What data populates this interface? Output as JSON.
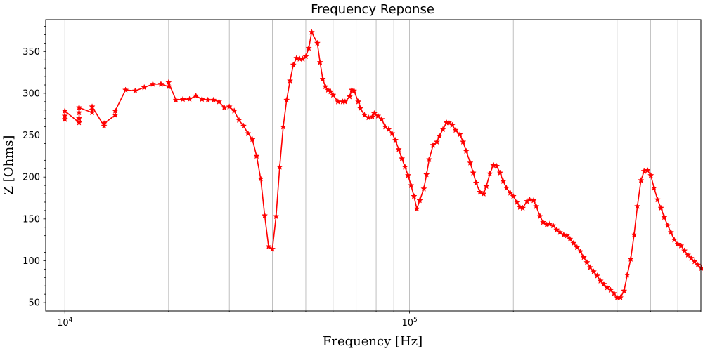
{
  "chart_data": {
    "type": "line",
    "title": "Frequency Reponse",
    "xlabel": "Frequency [Hz]",
    "ylabel": "Z [Ohms]",
    "xscale": "log",
    "xlim": [
      8800,
      700000
    ],
    "ylim": [
      40,
      388
    ],
    "grid": "x-major-and-minor",
    "x_tick_labels": [
      {
        "value": 10000,
        "base": "10",
        "exp": "4"
      },
      {
        "value": 100000,
        "base": "10",
        "exp": "5"
      }
    ],
    "y_ticks": [
      50,
      100,
      150,
      200,
      250,
      300,
      350
    ],
    "series": [
      {
        "color": "#ff0000",
        "marker": "star",
        "points": [
          [
            10000,
            269
          ],
          [
            10000,
            273
          ],
          [
            10000,
            279
          ],
          [
            11000,
            265
          ],
          [
            11000,
            270
          ],
          [
            11000,
            277
          ],
          [
            11000,
            283
          ],
          [
            12000,
            277
          ],
          [
            12000,
            280
          ],
          [
            12000,
            284
          ],
          [
            13000,
            261
          ],
          [
            13000,
            264
          ],
          [
            14000,
            274
          ],
          [
            14000,
            279
          ],
          [
            15000,
            304
          ],
          [
            16000,
            303
          ],
          [
            17000,
            307
          ],
          [
            18000,
            311
          ],
          [
            19000,
            311
          ],
          [
            20000,
            308
          ],
          [
            20000,
            313
          ],
          [
            21000,
            292
          ],
          [
            22000,
            293
          ],
          [
            23000,
            293
          ],
          [
            24000,
            297
          ],
          [
            25000,
            293
          ],
          [
            26000,
            292
          ],
          [
            27000,
            292
          ],
          [
            28000,
            290
          ],
          [
            29000,
            283
          ],
          [
            30000,
            284
          ],
          [
            31000,
            279
          ],
          [
            32000,
            268
          ],
          [
            33000,
            261
          ],
          [
            34000,
            252
          ],
          [
            35000,
            245
          ],
          [
            36000,
            225
          ],
          [
            37000,
            198
          ],
          [
            38000,
            154
          ],
          [
            39000,
            117
          ],
          [
            40000,
            114
          ],
          [
            41000,
            153
          ],
          [
            42000,
            212
          ],
          [
            43000,
            260
          ],
          [
            44000,
            292
          ],
          [
            45000,
            315
          ],
          [
            46000,
            334
          ],
          [
            47000,
            342
          ],
          [
            48000,
            341
          ],
          [
            49000,
            341
          ],
          [
            50000,
            344
          ],
          [
            51000,
            354
          ],
          [
            52000,
            373
          ],
          [
            54000,
            360
          ],
          [
            55000,
            337
          ],
          [
            56000,
            317
          ],
          [
            57000,
            308
          ],
          [
            58000,
            304
          ],
          [
            59000,
            302
          ],
          [
            60000,
            298
          ],
          [
            62000,
            290
          ],
          [
            64000,
            290
          ],
          [
            65000,
            290
          ],
          [
            67000,
            296
          ],
          [
            68000,
            304
          ],
          [
            69000,
            303
          ],
          [
            71000,
            290
          ],
          [
            72000,
            282
          ],
          [
            74000,
            274
          ],
          [
            76000,
            271
          ],
          [
            78000,
            272
          ],
          [
            79000,
            276
          ],
          [
            81000,
            273
          ],
          [
            83000,
            269
          ],
          [
            85000,
            260
          ],
          [
            87000,
            257
          ],
          [
            89000,
            252
          ],
          [
            91000,
            244
          ],
          [
            93000,
            233
          ],
          [
            95000,
            222
          ],
          [
            97000,
            212
          ],
          [
            99000,
            202
          ],
          [
            101000,
            190
          ],
          [
            103000,
            177
          ],
          [
            105000,
            162
          ],
          [
            107000,
            172
          ],
          [
            110000,
            186
          ],
          [
            112000,
            203
          ],
          [
            114000,
            221
          ],
          [
            117000,
            238
          ],
          [
            120000,
            242
          ],
          [
            122000,
            249
          ],
          [
            125000,
            257
          ],
          [
            128000,
            265
          ],
          [
            130000,
            265
          ],
          [
            133000,
            262
          ],
          [
            136000,
            256
          ],
          [
            140000,
            251
          ],
          [
            143000,
            242
          ],
          [
            146000,
            231
          ],
          [
            150000,
            217
          ],
          [
            153000,
            205
          ],
          [
            156000,
            193
          ],
          [
            160000,
            182
          ],
          [
            164000,
            180
          ],
          [
            167000,
            189
          ],
          [
            171000,
            204
          ],
          [
            175000,
            214
          ],
          [
            179000,
            213
          ],
          [
            183000,
            205
          ],
          [
            187000,
            195
          ],
          [
            191000,
            187
          ],
          [
            196000,
            181
          ],
          [
            200000,
            177
          ],
          [
            205000,
            170
          ],
          [
            209000,
            164
          ],
          [
            213000,
            163
          ],
          [
            219000,
            171
          ],
          [
            223000,
            173
          ],
          [
            229000,
            172
          ],
          [
            233000,
            165
          ],
          [
            239000,
            153
          ],
          [
            244000,
            146
          ],
          [
            250000,
            143
          ],
          [
            255000,
            144
          ],
          [
            261000,
            142
          ],
          [
            267000,
            137
          ],
          [
            273000,
            134
          ],
          [
            280000,
            131
          ],
          [
            286000,
            130
          ],
          [
            292000,
            126
          ],
          [
            299000,
            121
          ],
          [
            306000,
            116
          ],
          [
            313000,
            111
          ],
          [
            320000,
            104
          ],
          [
            327000,
            98
          ],
          [
            334000,
            92
          ],
          [
            342000,
            87
          ],
          [
            350000,
            82
          ],
          [
            358000,
            76
          ],
          [
            366000,
            72
          ],
          [
            374000,
            68
          ],
          [
            383000,
            65
          ],
          [
            392000,
            61
          ],
          [
            400000,
            56
          ],
          [
            409000,
            56
          ],
          [
            419000,
            64
          ],
          [
            428000,
            83
          ],
          [
            438000,
            102
          ],
          [
            448000,
            131
          ],
          [
            458000,
            165
          ],
          [
            469000,
            196
          ],
          [
            479000,
            207
          ],
          [
            490000,
            208
          ],
          [
            501000,
            202
          ],
          [
            512000,
            187
          ],
          [
            524000,
            173
          ],
          [
            536000,
            163
          ],
          [
            548000,
            152
          ],
          [
            561000,
            142
          ],
          [
            573000,
            134
          ],
          [
            586000,
            125
          ],
          [
            600000,
            120
          ],
          [
            613000,
            118
          ],
          [
            627000,
            112
          ],
          [
            642000,
            107
          ],
          [
            656000,
            103
          ],
          [
            671000,
            99
          ],
          [
            686000,
            95
          ],
          [
            702000,
            91
          ],
          [
            718000,
            89
          ],
          [
            734000,
            87
          ],
          [
            751000,
            85
          ],
          [
            768000,
            84
          ]
        ]
      }
    ]
  }
}
